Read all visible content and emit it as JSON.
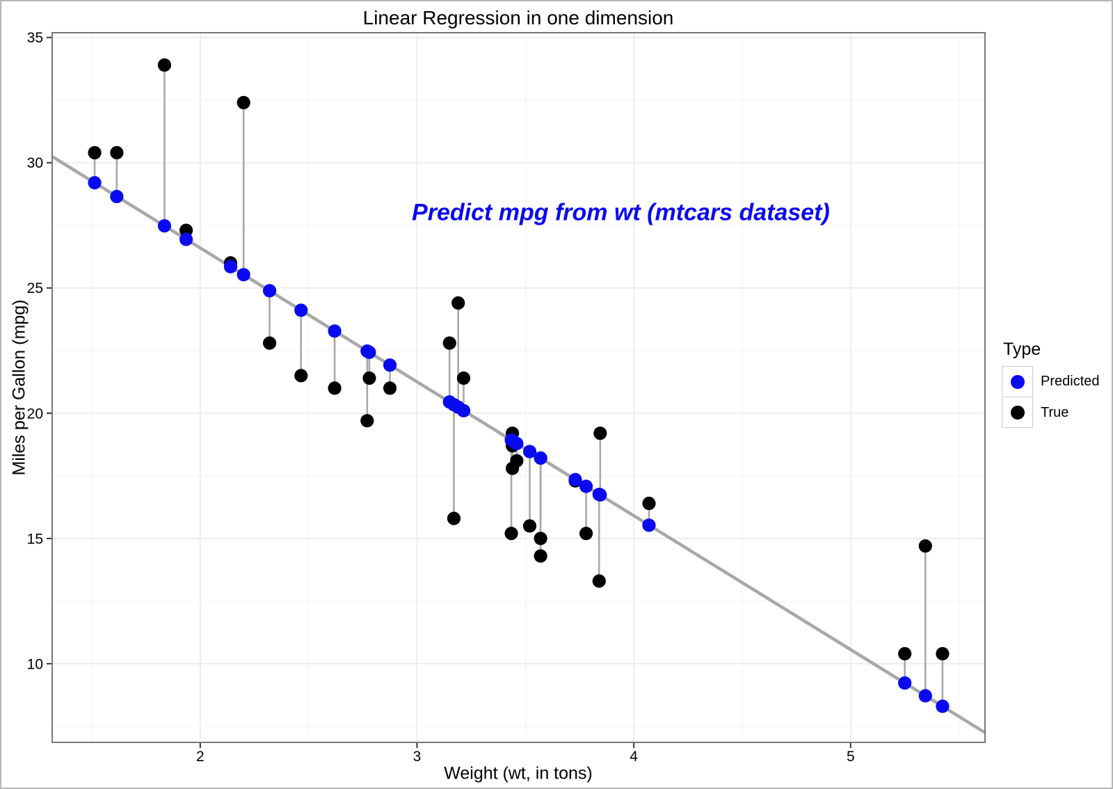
{
  "chart_data": {
    "type": "scatter",
    "title": "Linear Regression in one dimension",
    "xlabel": "Weight (wt, in tons)",
    "ylabel": "Miles per Gallon (mpg)",
    "annotation": {
      "text": "Predict mpg from wt (mtcars dataset)",
      "x": 3.94,
      "y": 28.0,
      "color": "#0a0af0"
    },
    "xlim": [
      1.317,
      5.62
    ],
    "ylim": [
      6.86,
      35.19
    ],
    "xticks": [
      2,
      3,
      4,
      5
    ],
    "yticks": [
      10,
      15,
      20,
      25,
      30,
      35
    ],
    "xticks_minor": [
      1.5,
      2.5,
      3.5,
      4.5,
      5.5
    ],
    "yticks_minor": [
      7.5,
      12.5,
      17.5,
      22.5,
      27.5,
      32.5
    ],
    "grid": true,
    "legend": {
      "title": "Type",
      "position": "right",
      "items": [
        {
          "label": "Predicted",
          "color": "#0a0af0"
        },
        {
          "label": "True",
          "color": "#000000"
        }
      ]
    },
    "regression_line": {
      "intercept": 37.285,
      "slope": -5.344
    },
    "series_note": "each point: wt (x), true_mpg (black dot), predicted_mpg (blue dot on line); gray vertical residual segment joins them",
    "points": [
      {
        "wt": 2.62,
        "true_mpg": 21.0,
        "predicted_mpg": 23.28
      },
      {
        "wt": 2.875,
        "true_mpg": 21.0,
        "predicted_mpg": 21.92
      },
      {
        "wt": 2.32,
        "true_mpg": 22.8,
        "predicted_mpg": 24.89
      },
      {
        "wt": 3.215,
        "true_mpg": 21.4,
        "predicted_mpg": 20.1
      },
      {
        "wt": 3.44,
        "true_mpg": 18.7,
        "predicted_mpg": 18.9
      },
      {
        "wt": 3.46,
        "true_mpg": 18.1,
        "predicted_mpg": 18.79
      },
      {
        "wt": 3.57,
        "true_mpg": 14.3,
        "predicted_mpg": 18.21
      },
      {
        "wt": 3.19,
        "true_mpg": 24.4,
        "predicted_mpg": 20.24
      },
      {
        "wt": 3.15,
        "true_mpg": 22.8,
        "predicted_mpg": 20.45
      },
      {
        "wt": 3.44,
        "true_mpg": 19.2,
        "predicted_mpg": 18.9
      },
      {
        "wt": 3.44,
        "true_mpg": 17.8,
        "predicted_mpg": 18.9
      },
      {
        "wt": 4.07,
        "true_mpg": 16.4,
        "predicted_mpg": 15.53
      },
      {
        "wt": 3.73,
        "true_mpg": 17.3,
        "predicted_mpg": 17.35
      },
      {
        "wt": 3.78,
        "true_mpg": 15.2,
        "predicted_mpg": 17.08
      },
      {
        "wt": 5.25,
        "true_mpg": 10.4,
        "predicted_mpg": 9.23
      },
      {
        "wt": 5.424,
        "true_mpg": 10.4,
        "predicted_mpg": 8.3
      },
      {
        "wt": 5.345,
        "true_mpg": 14.7,
        "predicted_mpg": 8.72
      },
      {
        "wt": 2.2,
        "true_mpg": 32.4,
        "predicted_mpg": 25.53
      },
      {
        "wt": 1.615,
        "true_mpg": 30.4,
        "predicted_mpg": 28.65
      },
      {
        "wt": 1.835,
        "true_mpg": 33.9,
        "predicted_mpg": 27.48
      },
      {
        "wt": 2.465,
        "true_mpg": 21.5,
        "predicted_mpg": 24.11
      },
      {
        "wt": 3.52,
        "true_mpg": 15.5,
        "predicted_mpg": 18.47
      },
      {
        "wt": 3.435,
        "true_mpg": 15.2,
        "predicted_mpg": 18.93
      },
      {
        "wt": 3.84,
        "true_mpg": 13.3,
        "predicted_mpg": 16.76
      },
      {
        "wt": 3.845,
        "true_mpg": 19.2,
        "predicted_mpg": 16.74
      },
      {
        "wt": 1.935,
        "true_mpg": 27.3,
        "predicted_mpg": 26.94
      },
      {
        "wt": 2.14,
        "true_mpg": 26.0,
        "predicted_mpg": 25.85
      },
      {
        "wt": 1.513,
        "true_mpg": 30.4,
        "predicted_mpg": 29.2
      },
      {
        "wt": 3.17,
        "true_mpg": 15.8,
        "predicted_mpg": 20.34
      },
      {
        "wt": 2.77,
        "true_mpg": 19.7,
        "predicted_mpg": 22.48
      },
      {
        "wt": 2.78,
        "true_mpg": 21.4,
        "predicted_mpg": 22.43
      },
      {
        "wt": 3.57,
        "true_mpg": 15.0,
        "predicted_mpg": 18.21
      }
    ],
    "colors": {
      "predicted": "#0a0af0",
      "true": "#000000",
      "regression_line": "#a8a8a8",
      "segment": "#a8a8a8",
      "grid_major": "#ececec",
      "grid_minor": "#f7f7f7",
      "panel_border": "#777777",
      "tick": "#333333"
    }
  }
}
